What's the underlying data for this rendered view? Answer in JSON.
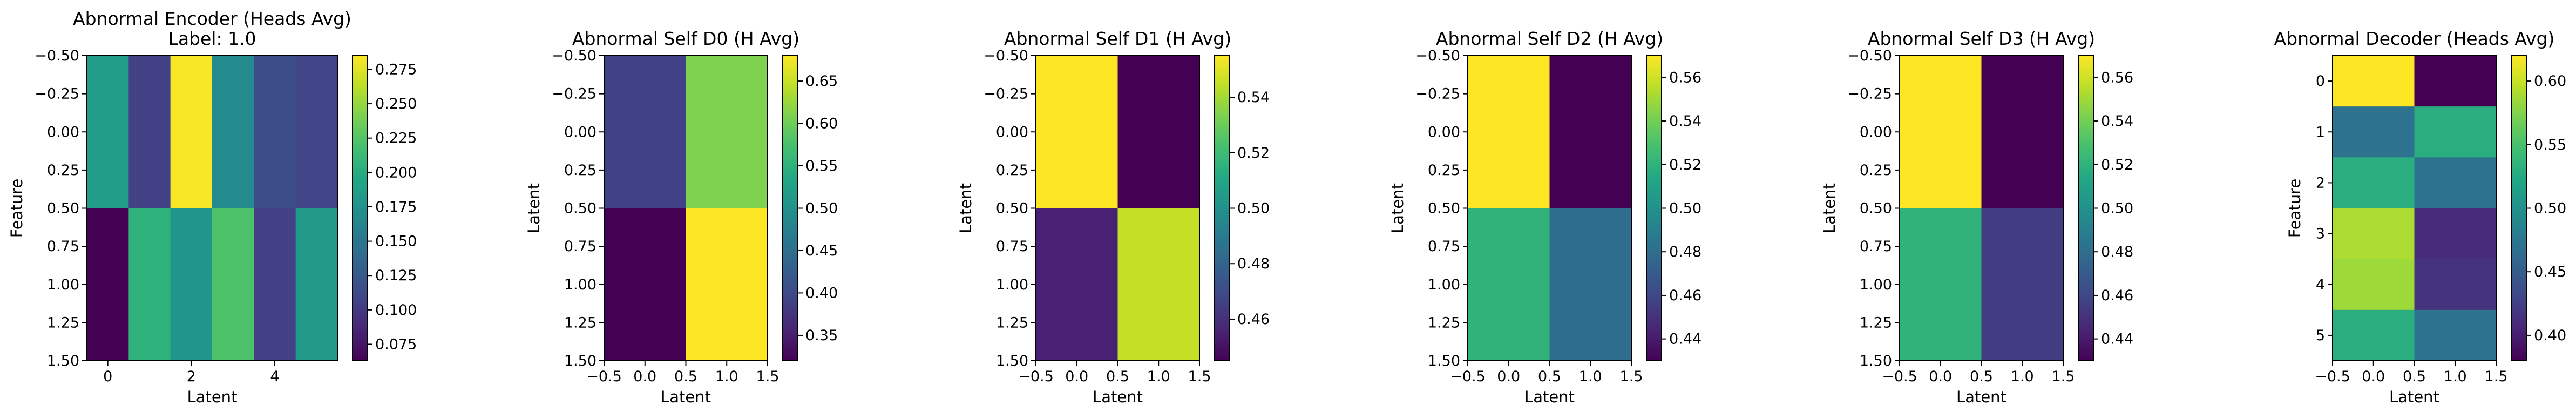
{
  "chart_data": [
    {
      "type": "heatmap",
      "title": "Abnormal Encoder (Heads Avg)",
      "subtitle": "Label: 1.0",
      "xlabel": "Latent",
      "ylabel": "Feature",
      "x_ticks": [
        "0",
        "2",
        "4"
      ],
      "y_ticks": [
        "−0.50",
        "−0.25",
        "0.00",
        "0.25",
        "0.50",
        "0.75",
        "1.00",
        "1.25",
        "1.50"
      ],
      "xlim": [
        -0.5,
        5.5
      ],
      "ylim": [
        1.5,
        -0.5
      ],
      "values": [
        [
          0.185,
          0.105,
          0.283,
          0.168,
          0.115,
          0.108
        ],
        [
          0.063,
          0.205,
          0.178,
          0.222,
          0.105,
          0.183
        ]
      ],
      "colorbar": {
        "min": 0.063,
        "max": 0.285,
        "ticks": [
          "0.075",
          "0.100",
          "0.125",
          "0.150",
          "0.175",
          "0.200",
          "0.225",
          "0.250",
          "0.275"
        ]
      }
    },
    {
      "type": "heatmap",
      "title": "Abnormal Self D0 (H Avg)",
      "xlabel": "Latent",
      "ylabel": "Latent",
      "x_ticks": [
        "−0.5",
        "0.0",
        "0.5",
        "1.0",
        "1.5"
      ],
      "y_ticks": [
        "−0.50",
        "−0.25",
        "0.00",
        "0.25",
        "0.50",
        "0.75",
        "1.00",
        "1.25",
        "1.50"
      ],
      "xlim": [
        -0.5,
        1.5
      ],
      "ylim": [
        1.5,
        -0.5
      ],
      "values": [
        [
          0.39,
          0.61
        ],
        [
          0.32,
          0.68
        ]
      ],
      "colorbar": {
        "min": 0.32,
        "max": 0.68,
        "ticks": [
          "0.35",
          "0.40",
          "0.45",
          "0.50",
          "0.55",
          "0.60",
          "0.65"
        ]
      }
    },
    {
      "type": "heatmap",
      "title": "Abnormal Self D1 (H Avg)",
      "xlabel": "Latent",
      "ylabel": "Latent",
      "x_ticks": [
        "−0.5",
        "0.0",
        "0.5",
        "1.0",
        "1.5"
      ],
      "y_ticks": [
        "−0.50",
        "−0.25",
        "0.00",
        "0.25",
        "0.50",
        "0.75",
        "1.00",
        "1.25",
        "1.50"
      ],
      "xlim": [
        -0.5,
        1.5
      ],
      "ylim": [
        1.5,
        -0.5
      ],
      "values": [
        [
          0.555,
          0.445
        ],
        [
          0.455,
          0.545
        ]
      ],
      "colorbar": {
        "min": 0.445,
        "max": 0.555,
        "ticks": [
          "0.46",
          "0.48",
          "0.50",
          "0.52",
          "0.54"
        ]
      }
    },
    {
      "type": "heatmap",
      "title": "Abnormal Self D2 (H Avg)",
      "xlabel": "Latent",
      "ylabel": "Latent",
      "x_ticks": [
        "−0.5",
        "0.0",
        "0.5",
        "1.0",
        "1.5"
      ],
      "y_ticks": [
        "−0.50",
        "−0.25",
        "0.00",
        "0.25",
        "0.50",
        "0.75",
        "1.00",
        "1.25",
        "1.50"
      ],
      "xlim": [
        -0.5,
        1.5
      ],
      "ylim": [
        1.5,
        -0.5
      ],
      "values": [
        [
          0.57,
          0.43
        ],
        [
          0.52,
          0.48
        ]
      ],
      "colorbar": {
        "min": 0.43,
        "max": 0.57,
        "ticks": [
          "0.44",
          "0.46",
          "0.48",
          "0.50",
          "0.52",
          "0.54",
          "0.56"
        ]
      }
    },
    {
      "type": "heatmap",
      "title": "Abnormal Self D3 (H Avg)",
      "xlabel": "Latent",
      "ylabel": "Latent",
      "x_ticks": [
        "−0.5",
        "0.0",
        "0.5",
        "1.0",
        "1.5"
      ],
      "y_ticks": [
        "−0.50",
        "−0.25",
        "0.00",
        "0.25",
        "0.50",
        "0.75",
        "1.00",
        "1.25",
        "1.50"
      ],
      "xlim": [
        -0.5,
        1.5
      ],
      "ylim": [
        1.5,
        -0.5
      ],
      "values": [
        [
          0.57,
          0.43
        ],
        [
          0.52,
          0.455
        ]
      ],
      "colorbar": {
        "min": 0.43,
        "max": 0.57,
        "ticks": [
          "0.44",
          "0.46",
          "0.48",
          "0.50",
          "0.52",
          "0.54",
          "0.56"
        ]
      }
    },
    {
      "type": "heatmap",
      "title": "Abnormal Decoder (Heads Avg)",
      "xlabel": "Latent",
      "ylabel": "Feature",
      "x_ticks": [
        "−0.5",
        "0.0",
        "0.5",
        "1.0",
        "1.5"
      ],
      "y_ticks": [
        "0",
        "1",
        "2",
        "3",
        "4",
        "5"
      ],
      "xlim": [
        -0.5,
        1.5
      ],
      "ylim": [
        5.5,
        -0.5
      ],
      "values": [
        [
          0.62,
          0.38
        ],
        [
          0.47,
          0.53
        ],
        [
          0.53,
          0.47
        ],
        [
          0.59,
          0.41
        ],
        [
          0.585,
          0.415
        ],
        [
          0.53,
          0.47
        ]
      ],
      "colorbar": {
        "min": 0.38,
        "max": 0.62,
        "ticks": [
          "0.40",
          "0.45",
          "0.50",
          "0.55",
          "0.60"
        ]
      }
    }
  ]
}
